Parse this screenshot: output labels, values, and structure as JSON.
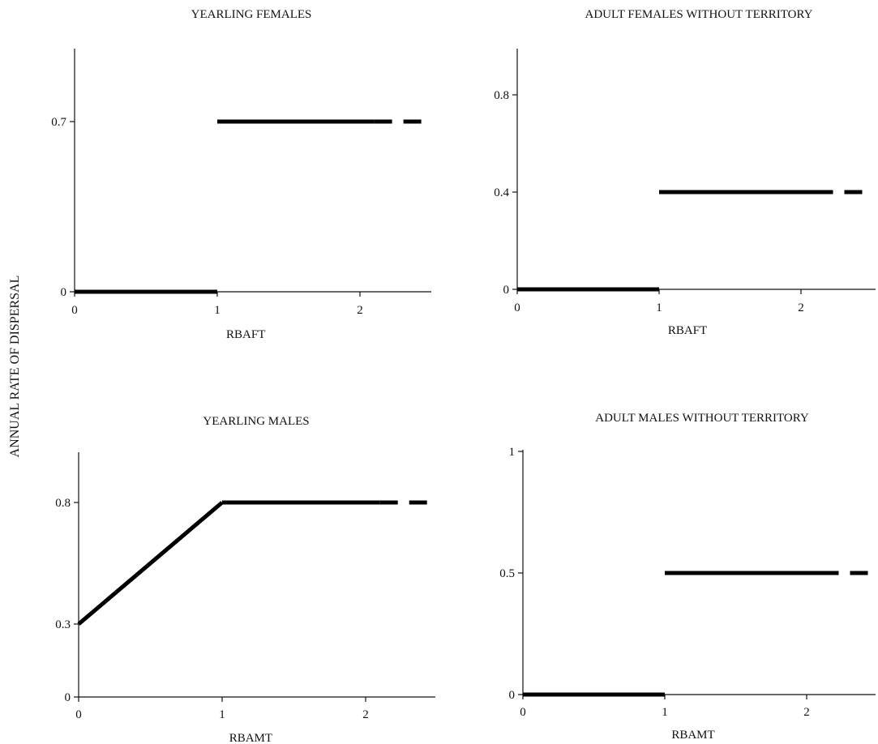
{
  "figure": {
    "ylabel": "ANNUAL RATE OF DISPERSAL"
  },
  "chart_data": [
    {
      "type": "line",
      "title": "YEARLING FEMALES",
      "xlabel": "RBAFT",
      "ylabel": "ANNUAL RATE OF DISPERSAL",
      "xlim": [
        0,
        2.5
      ],
      "ylim": [
        0,
        1.0
      ],
      "xticks": [
        "0",
        "1",
        "2"
      ],
      "yticks": [
        {
          "value": 0,
          "label": "0"
        },
        {
          "value": 0.7,
          "label": "0.7"
        }
      ],
      "segments": [
        {
          "x": [
            0,
            1
          ],
          "y": [
            0,
            0
          ],
          "style": "solid"
        },
        {
          "x": [
            1,
            2.1
          ],
          "y": [
            0.7,
            0.7
          ],
          "style": "solid"
        },
        {
          "x": [
            2.1,
            2.5
          ],
          "y": [
            0.7,
            0.7
          ],
          "style": "dashed"
        }
      ]
    },
    {
      "type": "line",
      "title": "ADULT FEMALES WITHOUT TERRITORY",
      "xlabel": "RBAFT",
      "ylabel": "ANNUAL RATE OF DISPERSAL",
      "xlim": [
        0,
        2.5
      ],
      "ylim": [
        0,
        1.0
      ],
      "xticks": [
        "0",
        "1",
        "2"
      ],
      "yticks": [
        {
          "value": 0,
          "label": "0"
        },
        {
          "value": 0.4,
          "label": "0.4"
        },
        {
          "value": 0.8,
          "label": "0.8"
        }
      ],
      "segments": [
        {
          "x": [
            0,
            1
          ],
          "y": [
            0,
            0
          ],
          "style": "solid"
        },
        {
          "x": [
            1,
            2.1
          ],
          "y": [
            0.4,
            0.4
          ],
          "style": "solid"
        },
        {
          "x": [
            2.1,
            2.5
          ],
          "y": [
            0.4,
            0.4
          ],
          "style": "dashed"
        }
      ]
    },
    {
      "type": "line",
      "title": "YEARLING MALES",
      "xlabel": "RBAMT",
      "ylabel": "ANNUAL RATE OF DISPERSAL",
      "xlim": [
        0,
        2.5
      ],
      "ylim": [
        0,
        1.0
      ],
      "xticks": [
        "0",
        "1",
        "2"
      ],
      "yticks": [
        {
          "value": 0,
          "label": "0"
        },
        {
          "value": 0.3,
          "label": "0.3"
        },
        {
          "value": 0.8,
          "label": "0.8"
        }
      ],
      "segments": [
        {
          "x": [
            0,
            1
          ],
          "y": [
            0.3,
            0.8
          ],
          "style": "solid"
        },
        {
          "x": [
            1,
            2.1
          ],
          "y": [
            0.8,
            0.8
          ],
          "style": "solid"
        },
        {
          "x": [
            2.1,
            2.5
          ],
          "y": [
            0.8,
            0.8
          ],
          "style": "dashed"
        }
      ]
    },
    {
      "type": "line",
      "title": "ADULT MALES WITHOUT TERRITORY",
      "xlabel": "RBAMT",
      "ylabel": "ANNUAL RATE OF DISPERSAL",
      "xlim": [
        0,
        2.5
      ],
      "ylim": [
        0,
        1.0
      ],
      "xticks": [
        "0",
        "1",
        "2"
      ],
      "yticks": [
        {
          "value": 0,
          "label": "0"
        },
        {
          "value": 0.5,
          "label": "0.5"
        },
        {
          "value": 1,
          "label": "1"
        }
      ],
      "segments": [
        {
          "x": [
            0,
            1
          ],
          "y": [
            0,
            0
          ],
          "style": "solid"
        },
        {
          "x": [
            1,
            2.1
          ],
          "y": [
            0.5,
            0.5
          ],
          "style": "solid"
        },
        {
          "x": [
            2.1,
            2.5
          ],
          "y": [
            0.5,
            0.5
          ],
          "style": "dashed"
        }
      ]
    }
  ]
}
